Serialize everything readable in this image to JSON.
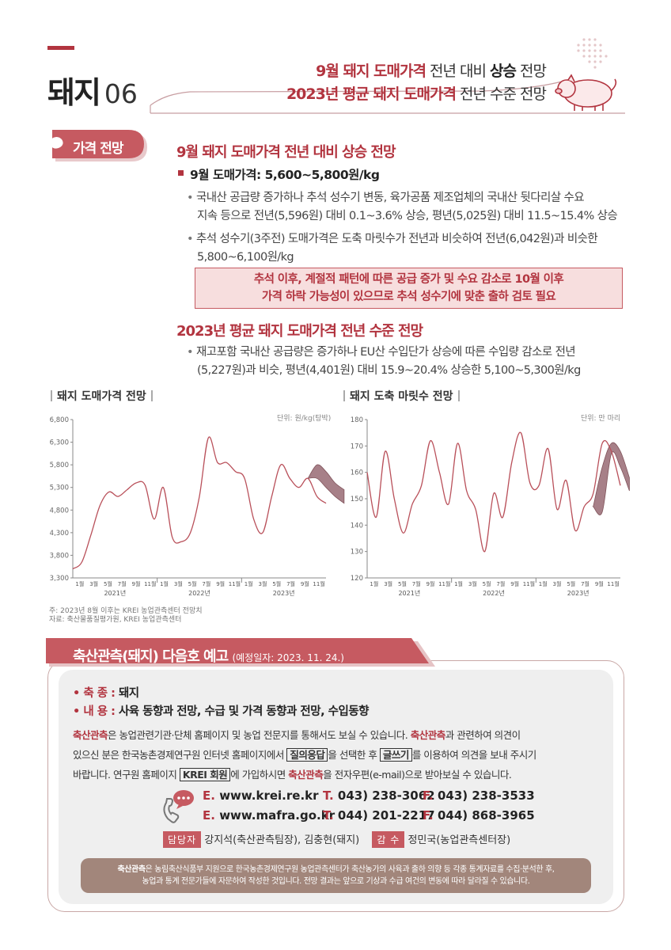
{
  "header": {
    "title": "돼지",
    "number": "06",
    "line1": {
      "a": "9월 돼지 도매가격",
      "b": " 전년 대비 ",
      "c": "상승",
      "d": " 전망"
    },
    "line2": {
      "a": "2023년 평균 돼지 도매가격",
      "b": " 전년 수준 전망"
    }
  },
  "badge": "가격 전망",
  "section1": {
    "heading": "9월 돼지 도매가격 전년 대비 상승 전망",
    "subhead": "9월 도매가격: 5,600~5,800원/kg",
    "bullets": [
      [
        "국내산 공급량 증가하나 추석 성수기 변동, 육가공품 제조업체의 국내산 뒷다리살 수요",
        "지속 등으로 전년(5,596원) 대비 0.1~3.6% 상승, 평년(5,025원) 대비 11.5~15.4% 상승"
      ],
      [
        "추석 성수기(3주전) 도매가격은 도축 마릿수가 전년과 비슷하여 전년(6,042원)과 비슷한",
        "5,800~6,100원/kg"
      ]
    ],
    "callout": [
      "추석 이후, 계절적 패턴에 따른 공급 증가 및 수요 감소로 10월 이후",
      "가격 하락 가능성이 있으므로 추석 성수기에 맞춘 출하 검토 필요"
    ]
  },
  "section2": {
    "heading": "2023년 평균 돼지 도매가격 전년 수준 전망",
    "bullets": [
      [
        "재고포함 국내산 공급량은 증가하나 EU산 수입단가 상승에 따른 수입량 감소로 전년",
        "(5,227원)과 비슷, 평년(4,401원) 대비 15.9~20.4% 상승한 5,100~5,300원/kg"
      ]
    ]
  },
  "charts_meta": {
    "note1": "주: 2023년 8월 이후는 KREI 농업관측센터 전망치",
    "note2": "자료: 축산물품질평가원, KREI 농업관측센터"
  },
  "chart_data": [
    {
      "type": "line",
      "title": "돼지 도매가격 전망",
      "unit": "단위: 원/kg(탕박)",
      "ylim": [
        3300,
        6800
      ],
      "yticks": [
        "3,300",
        "3,800",
        "4,300",
        "4,800",
        "5,300",
        "5,800",
        "6,300",
        "6,800"
      ],
      "ytick_values": [
        3300,
        3800,
        4300,
        4800,
        5300,
        5800,
        6300,
        6800
      ],
      "xticks": [
        "1월",
        "3월",
        "5월",
        "7월",
        "9월",
        "11월",
        "1월",
        "3월",
        "5월",
        "7월",
        "9월",
        "11월",
        "1월",
        "3월",
        "5월",
        "7월",
        "9월",
        "11월"
      ],
      "years": [
        "2021년",
        "2022년",
        "2023년"
      ],
      "series": [
        {
          "values": [
            3500,
            3650,
            4250,
            4900,
            5200,
            5100,
            5250,
            5400,
            5350,
            4600,
            5300,
            4200,
            4100,
            4300,
            5100,
            6400,
            5850,
            5850,
            5650,
            5500,
            4600,
            4300,
            5100,
            5800,
            5500,
            5300,
            5500,
            5100,
            4950
          ]
        }
      ],
      "forecast_band": {
        "start_index": 26,
        "upper": [
          5500,
          5800,
          5650,
          5400,
          5250
        ],
        "lower": [
          5500,
          5500,
          5300,
          5100,
          4950
        ]
      },
      "grid": false
    },
    {
      "type": "line",
      "title": "돼지 도축 마릿수 전망",
      "unit": "단위: 만 마리",
      "ylim": [
        120,
        180
      ],
      "yticks": [
        "120",
        "130",
        "140",
        "150",
        "160",
        "170",
        "180"
      ],
      "ytick_values": [
        120,
        130,
        140,
        150,
        160,
        170,
        180
      ],
      "xticks": [
        "1월",
        "3월",
        "5월",
        "7월",
        "9월",
        "11월",
        "1월",
        "3월",
        "5월",
        "7월",
        "9월",
        "11월",
        "1월",
        "3월",
        "5월",
        "7월",
        "9월",
        "11월"
      ],
      "years": [
        "2021년",
        "2022년",
        "2023년"
      ],
      "series": [
        {
          "values": [
            160,
            143,
            168,
            150,
            137,
            148,
            155,
            172,
            160,
            148,
            171,
            153,
            146,
            130,
            152,
            143,
            164,
            175,
            156,
            155,
            169,
            146,
            157,
            138,
            147,
            152,
            171,
            168,
            155
          ]
        }
      ],
      "forecast_band": {
        "start_index": 25,
        "upper": [
          147,
          162,
          171,
          168,
          158
        ],
        "lower": [
          147,
          145,
          167,
          162,
          153
        ]
      },
      "grid": false
    }
  ],
  "announce": {
    "title": "축산관측(돼지) 다음호 예고",
    "date": "(예정일자: 2023. 11. 24.)",
    "species_label": "• 축 종 : ",
    "species": "돼지",
    "content_label": "• 내 용 : ",
    "content": "사육 동향과 전망, 수급 및 가격 동향과 전망, 수입동향",
    "p1a": "축산관측",
    "p1b": "은 농업관련기관·단체 홈페이지 및 농업 전문지를 통해서도 보실 수 있습니다. ",
    "p1c": "축산관측",
    "p1d": "과 관련하여 의견이",
    "p2a": "있으신 분은 한국농촌경제연구원 인터넷 홈페이지에서 ",
    "p2b": "질의응답",
    "p2c": "을 선택한 후 ",
    "p2d": "글쓰기",
    "p2e": "를 이용하여 의견을 보내 주시기",
    "p3a": "바랍니다. 연구원 홈페이지 ",
    "p3b": "KREI 회원",
    "p3c": "에 가입하시면 ",
    "p3d": "축산관측",
    "p3e": "을 전자우편(e-mail)으로 받아보실 수 있습니다.",
    "contacts": [
      {
        "e": "E.",
        "site": "www.krei.re.kr",
        "t": "T.",
        "tel": "043) 238-3062",
        "f": "F.",
        "fax": "043) 238-3533"
      },
      {
        "e": "E.",
        "site": "www.mafra.go.kr",
        "t": "T.",
        "tel": "044) 201-2217",
        "f": "F.",
        "fax": "044) 868-3965"
      }
    ],
    "staff_tag": "담당자",
    "staff": "강지석(축산관측팀장), 김충현(돼지)",
    "super_tag": "감 수",
    "supervisor": "정민국(농업관측센터장)",
    "foot1a": "축산관측",
    "foot1b": "은 농림축산식품부 지원으로 한국농촌경제연구원 농업관측센터가 축산농가의 사육과 출하 의향 등 각종 통계자료를 수집·분석한 후,",
    "foot2": "농업과 통계 전문가들에 자문하여 작성한 것입니다. 전망 결과는 앞으로 기상과 수급 여건의 변동에 따라 달라질 수 있습니다."
  },
  "colors": {
    "accent": "#b2343f",
    "line": "#b9505a",
    "band": "#a37a82",
    "box": "#efefef",
    "footer": "#a2867b"
  }
}
